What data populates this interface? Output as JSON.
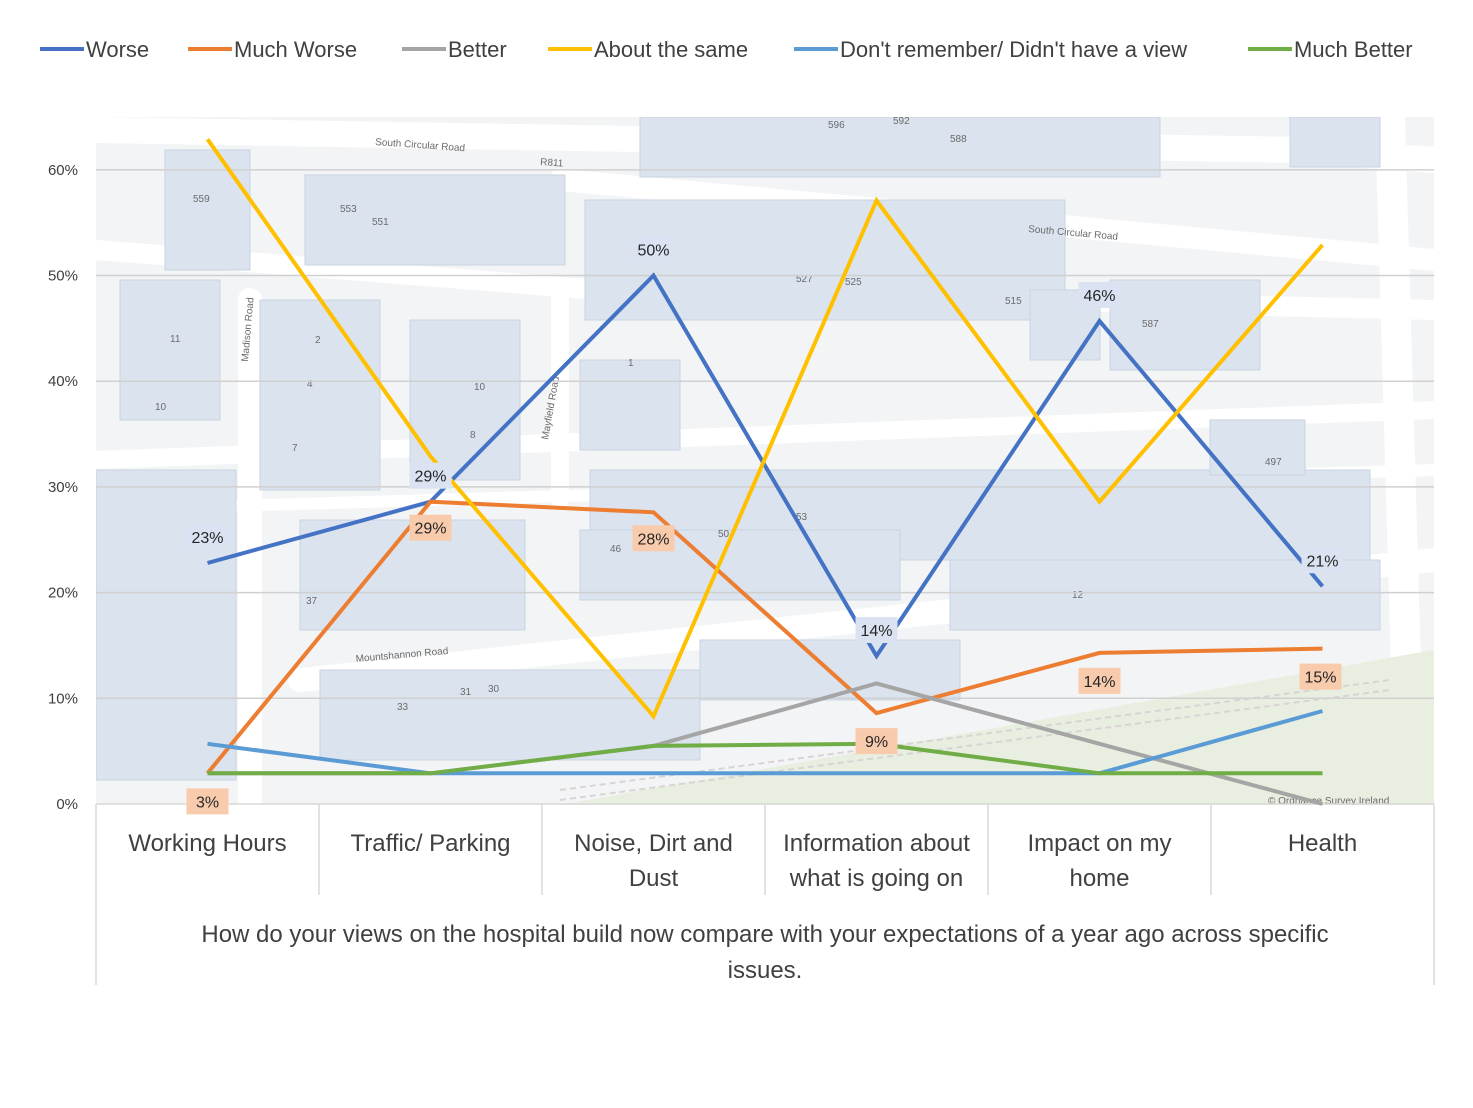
{
  "chart_data": {
    "type": "line",
    "title": "",
    "xlabel": "How  do your views on the hospital  build now compare with your expectations of a year ago across specific issues.",
    "xlabel_lines": [
      "How  do your views on the hospital  build now compare with your expectations of a year ago across specific",
      "issues."
    ],
    "ylabel": "",
    "ylim": [
      0,
      0.65
    ],
    "yticks": [
      0,
      0.1,
      0.2,
      0.3,
      0.4,
      0.5,
      0.6
    ],
    "ytick_labels": [
      "0%",
      "10%",
      "20%",
      "30%",
      "40%",
      "50%",
      "60%"
    ],
    "categories": [
      "Working Hours",
      "Traffic/ Parking",
      "Noise, Dirt and Dust",
      "Information about what is going on",
      "Impact on my home",
      "Health"
    ],
    "category_lines": [
      [
        "Working Hours"
      ],
      [
        "Traffic/ Parking"
      ],
      [
        "Noise, Dirt and",
        "Dust"
      ],
      [
        "Information about",
        "what is going on"
      ],
      [
        "Impact on my",
        "home"
      ],
      [
        "Health"
      ]
    ],
    "legend_position": "top",
    "grid": true,
    "series": [
      {
        "name": "Worse",
        "color": "#4472C4",
        "values": [
          0.228,
          0.286,
          0.5,
          0.14,
          0.457,
          0.206
        ],
        "labels": [
          "23%",
          "29%",
          "50%",
          "14%",
          "46%",
          "21%"
        ]
      },
      {
        "name": "Much Worse",
        "color": "#ED7D31",
        "values": [
          0.029,
          0.286,
          0.276,
          0.086,
          0.143,
          0.147
        ],
        "labels": [
          "3%",
          "29%",
          "28%",
          "9%",
          "14%",
          "15%"
        ]
      },
      {
        "name": "Better",
        "color": "#A5A5A5",
        "values": [
          0.029,
          0.029,
          0.055,
          0.114,
          0.057,
          0.0
        ],
        "labels": []
      },
      {
        "name": "About the same",
        "color": "#FFC000",
        "values": [
          0.629,
          0.329,
          0.083,
          0.571,
          0.286,
          0.529
        ],
        "labels": []
      },
      {
        "name": "Don't remember/ Didn't have a view",
        "color": "#5B9BD5",
        "values": [
          0.057,
          0.029,
          0.029,
          0.029,
          0.029,
          0.088
        ],
        "labels": []
      },
      {
        "name": "Much Better",
        "color": "#70AD47",
        "values": [
          0.029,
          0.029,
          0.055,
          0.057,
          0.029,
          0.029
        ],
        "labels": []
      }
    ]
  },
  "background": {
    "road_labels": [
      "South Circular Road",
      "R811",
      "South Circular Road",
      "Madison Road",
      "Mayfield Road",
      "Mountshannon Road"
    ],
    "house_numbers": [
      "559",
      "553",
      "551",
      "11",
      "10",
      "2",
      "4",
      "10",
      "8",
      "7",
      "1",
      "527",
      "525",
      "515",
      "587",
      "497",
      "46",
      "50",
      "53",
      "37",
      "33",
      "31",
      "30",
      "12",
      "596",
      "592",
      "588"
    ],
    "credit": "© Ordnance Survey Ireland"
  }
}
